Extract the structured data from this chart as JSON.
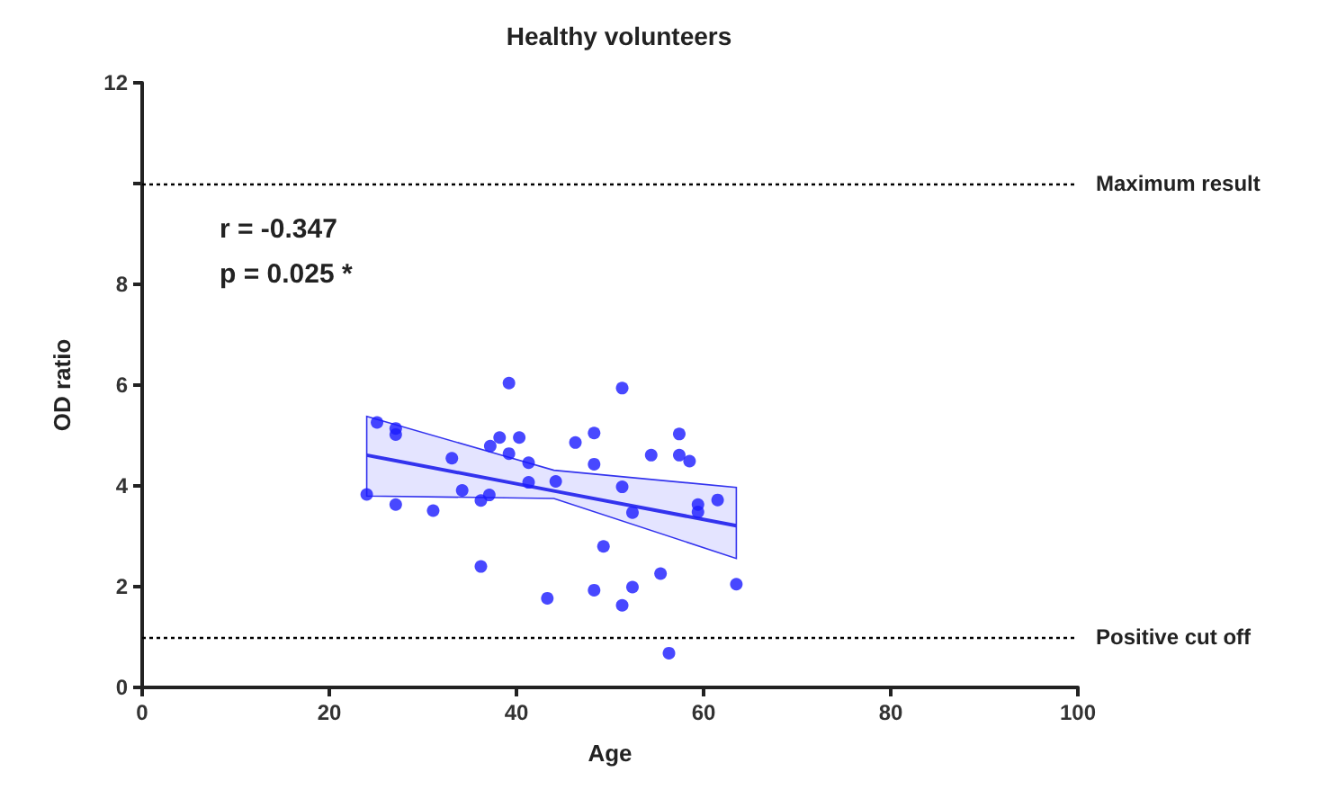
{
  "chart_data": {
    "type": "scatter",
    "title": "Healthy volunteers",
    "xlabel": "Age",
    "ylabel": "OD ratio",
    "annotations": [
      "r = -0.347",
      "p = 0.025 *"
    ],
    "xlim": [
      0,
      100
    ],
    "xticks": [
      0,
      20,
      40,
      60,
      80,
      100
    ],
    "ylim": [
      0,
      12
    ],
    "yticks": [
      0,
      2,
      4,
      6,
      8,
      {
        "value": 10,
        "label": null
      },
      12
    ],
    "grid": false,
    "marker": "circle",
    "ref_lines": [
      {
        "axis": "y",
        "value": 10,
        "label": "Maximum result",
        "line_style": "dotted",
        "color": "#000000"
      },
      {
        "axis": "y",
        "value": 1,
        "label": "Positive cut off",
        "line_style": "dotted",
        "color": "#000000"
      }
    ],
    "series": [
      {
        "color": "#1a1aff",
        "x": [
          24.0,
          25.1,
          27.1,
          27.1,
          27.1,
          31.1,
          33.1,
          34.2,
          36.2,
          36.2,
          37.1,
          37.2,
          38.2,
          39.2,
          39.2,
          40.3,
          41.3,
          41.3,
          43.3,
          44.2,
          46.3,
          48.3,
          48.3,
          48.3,
          49.3,
          51.3,
          51.3,
          51.3,
          52.4,
          52.4,
          54.4,
          55.4,
          56.3,
          57.4,
          57.4,
          58.5,
          59.4,
          59.4,
          61.5,
          63.5
        ],
        "values": [
          3.83,
          5.26,
          5.14,
          5.02,
          3.63,
          3.51,
          4.55,
          3.91,
          2.4,
          3.71,
          3.82,
          4.79,
          4.96,
          6.04,
          4.64,
          4.96,
          4.46,
          4.07,
          1.77,
          4.09,
          4.86,
          5.05,
          4.43,
          1.93,
          2.8,
          5.94,
          3.98,
          1.63,
          3.47,
          1.99,
          4.61,
          2.26,
          0.68,
          5.03,
          4.61,
          4.49,
          3.63,
          3.48,
          3.72,
          2.05
        ]
      },
      {
        "type": "line",
        "color": "#3333ee",
        "x": [
          24.0,
          44.0,
          63.5
        ],
        "values": [
          4.61,
          3.9,
          3.21
        ],
        "lower": [
          3.8,
          3.75,
          2.56
        ],
        "upper": [
          5.38,
          4.31,
          3.97
        ],
        "marker": "none",
        "line_style": "solid"
      }
    ]
  }
}
